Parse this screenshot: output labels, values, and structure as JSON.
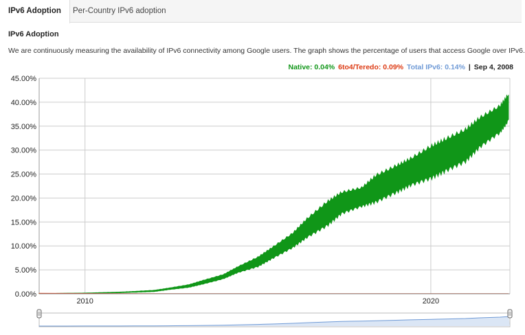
{
  "tabs": [
    {
      "label": "IPv6 Adoption",
      "active": true
    },
    {
      "label": "Per-Country IPv6 adoption",
      "active": false
    }
  ],
  "section_title": "IPv6 Adoption",
  "description": "We are continuously measuring the availability of IPv6 connectivity among Google users. The graph shows the percentage of users that access Google over IPv6.",
  "legend": {
    "native": "Native: 0.04%",
    "teredo": "6to4/Teredo: 0.09%",
    "total": "Total IPv6: 0.14%",
    "separator": "|",
    "date": "Sep 4, 2008"
  },
  "colors": {
    "native": "#109618",
    "teredo": "#dc3912",
    "total": "#6f9ad6",
    "grid": "#cccccc",
    "navigator_fill": "#dbe6f5",
    "navigator_line": "#6f9ad6"
  },
  "chart_data": {
    "type": "area",
    "title": "",
    "xlabel": "",
    "ylabel": "",
    "x_range": [
      "2008-09-04",
      "2022-04-15"
    ],
    "x_tick_labels": [
      "2010",
      "2020"
    ],
    "y_tick_labels": [
      "0.00%",
      "5.00%",
      "10.00%",
      "15.00%",
      "20.00%",
      "25.00%",
      "30.00%",
      "35.00%",
      "40.00%",
      "45.00%"
    ],
    "ylim": [
      0,
      45
    ],
    "grid": true,
    "series": [
      {
        "name": "Native",
        "color": "#109618",
        "x": [
          "2008-09",
          "2009-06",
          "2010-01",
          "2010-06",
          "2011-01",
          "2011-06",
          "2012-01",
          "2012-06",
          "2013-01",
          "2013-06",
          "2014-01",
          "2014-06",
          "2015-01",
          "2015-06",
          "2016-01",
          "2016-06",
          "2017-01",
          "2017-06",
          "2018-01",
          "2018-06",
          "2019-01",
          "2019-06",
          "2020-01",
          "2020-06",
          "2021-01",
          "2021-06",
          "2022-01",
          "2022-04"
        ],
        "low": [
          0.04,
          0.08,
          0.12,
          0.18,
          0.25,
          0.35,
          0.5,
          0.9,
          1.4,
          2.1,
          3.2,
          4.5,
          5.8,
          7.5,
          9.8,
          12.0,
          14.5,
          17.0,
          18.5,
          19.5,
          21.5,
          23.0,
          24.5,
          26.0,
          28.0,
          31.0,
          34.0,
          36.5
        ],
        "high": [
          0.06,
          0.12,
          0.18,
          0.26,
          0.38,
          0.52,
          0.75,
          1.2,
          1.9,
          2.8,
          4.0,
          5.6,
          7.6,
          9.6,
          12.5,
          15.5,
          19.0,
          21.0,
          22.0,
          24.5,
          26.5,
          28.0,
          30.5,
          32.0,
          34.0,
          36.5,
          39.0,
          41.5
        ]
      },
      {
        "name": "6to4/Teredo",
        "color": "#dc3912",
        "x": [
          "2008-09",
          "2012-01",
          "2016-01",
          "2022-04"
        ],
        "values": [
          0.09,
          0.03,
          0.01,
          0.01
        ]
      }
    ]
  }
}
